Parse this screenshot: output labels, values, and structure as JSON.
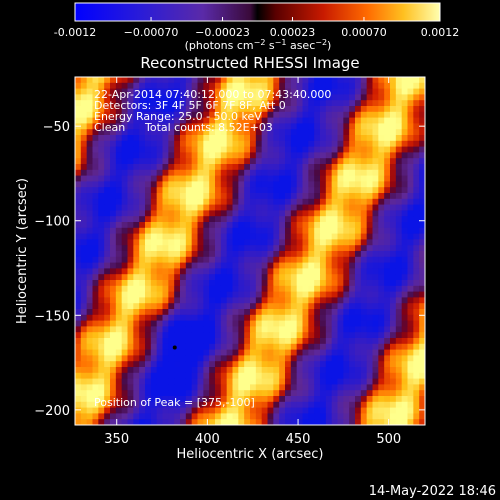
{
  "chart_data": {
    "type": "heatmap",
    "title": "Reconstructed RHESSI Image",
    "xlabel": "Heliocentric X (arcsec)",
    "ylabel": "Heliocentric Y (arcsec)",
    "xlim": [
      327,
      520
    ],
    "ylim": [
      -208,
      -24
    ],
    "x_ticks": [
      350,
      400,
      450,
      500
    ],
    "y_ticks": [
      -200,
      -150,
      -100,
      -50
    ],
    "colorbar": {
      "colormap": "red-temperature with blue negatives",
      "range": [
        -0.0012,
        0.0012
      ],
      "tick_values": [
        -0.0012,
        -0.0007,
        -0.00023,
        0.00023,
        0.0007,
        0.0012
      ],
      "tick_labels": [
        "-0.0012",
        "−0.00070",
        "−0.00023",
        "0.00023",
        "0.00070",
        "0.0012"
      ],
      "unit_text": "(photons cm",
      "unit_exp1": "−2",
      "unit_mid": " s",
      "unit_exp2": "−1",
      "unit_end": " asec",
      "unit_exp3": "−2",
      "unit_close": ")"
    },
    "stripe_pattern": {
      "description": "alternating positive/negative diagonal stripes",
      "bright_ridges_x_at_y_minus_120": [
        372,
        460
      ],
      "negative_minimum": {
        "x": 382,
        "y": -167
      }
    },
    "peak_marker": {
      "x": 382,
      "y": -167
    },
    "annotations": {
      "time_range": "22-Apr-2014 07:40:12.000 to 07:43:40.000",
      "detectors": "Detectors: 3F 4F 5F 6F 7F 8F, Att 0",
      "energy": "Energy Range: 25.0 - 50.0 keV",
      "algorithm": "Clean",
      "counts": "Total counts: 8.52E+03",
      "peak_position": "Position of Peak = [375,-100]"
    }
  },
  "footer": {
    "timestamp": "14-May-2022 18:46"
  }
}
